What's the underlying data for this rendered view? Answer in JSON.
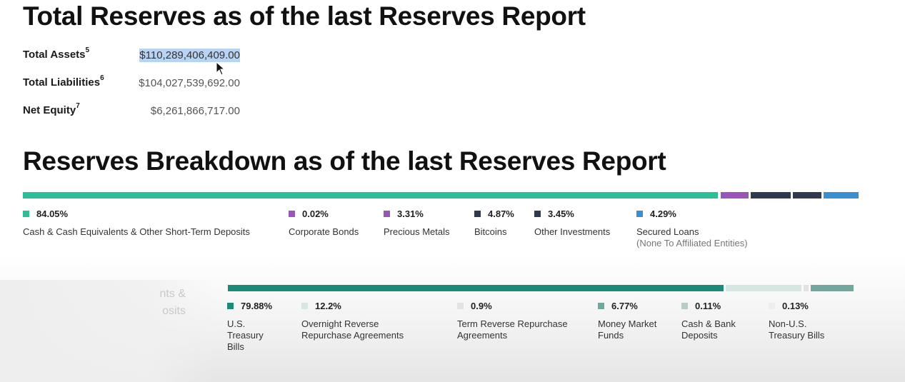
{
  "totals": {
    "title": "Total Reserves as of the last Reserves Report",
    "rows": [
      {
        "label": "Total Assets",
        "sup": "5",
        "value": "$110,289,406,409.00"
      },
      {
        "label": "Total Liabilities",
        "sup": "6",
        "value": "$104,027,539,692.00"
      },
      {
        "label": "Net Equity",
        "sup": "7",
        "value": "$6,261,866,717.00"
      }
    ]
  },
  "breakdown": {
    "title": "Reserves Breakdown as of the last Reserves Report",
    "legend": [
      {
        "pct": "84.05%",
        "name": "Cash & Cash Equivalents & Other Short-Term Deposits",
        "sub": "",
        "color": "#2bbf97"
      },
      {
        "pct": "0.02%",
        "name": "Corporate Bonds",
        "sub": "",
        "color": "#9a55b8"
      },
      {
        "pct": "3.31%",
        "name": "Precious Metals",
        "sub": "",
        "color": "#9a55b8"
      },
      {
        "pct": "4.87%",
        "name": "Bitcoins",
        "sub": "",
        "color": "#303a4e"
      },
      {
        "pct": "3.45%",
        "name": "Other Investments",
        "sub": "",
        "color": "#303a4e"
      },
      {
        "pct": "4.29%",
        "name": "Secured Loans",
        "sub": "(None To Affiliated Entities)",
        "color": "#3a8fd0"
      }
    ]
  },
  "cash_breakdown": {
    "ghost_lines": [
      "nts &",
      "osits"
    ],
    "legend": [
      {
        "pct": "79.88%",
        "name": "U.S. Treasury Bills",
        "color": "#1b8a78"
      },
      {
        "pct": "12.2%",
        "name": "Overnight Reverse Repurchase Agreements",
        "color": "#d6e6e3"
      },
      {
        "pct": "0.9%",
        "name": "Term Reverse Repurchase Agreements",
        "color": "#e3e3e3"
      },
      {
        "pct": "6.77%",
        "name": "Money Market Funds",
        "color": "#6fa89d"
      },
      {
        "pct": "0.11%",
        "name": "Cash & Bank Deposits",
        "color": "#b8ccc6"
      },
      {
        "pct": "0.13%",
        "name": "Non-U.S. Treasury Bills",
        "color": "#eeeeee"
      }
    ]
  }
}
